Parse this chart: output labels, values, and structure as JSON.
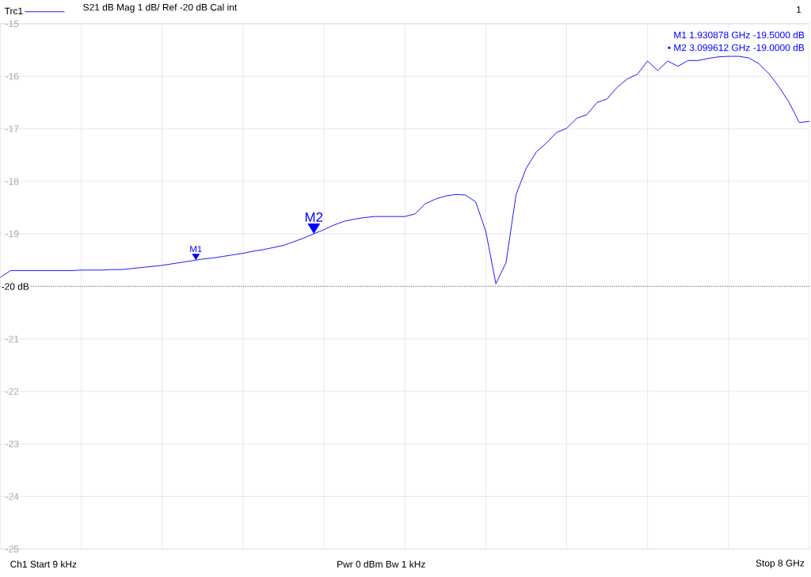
{
  "chart_data": {
    "type": "line",
    "title": "S21 dB Mag 1 dB/ Ref -20 dB Cal int",
    "categories": [
      null,
      null,
      null,
      null,
      null,
      null,
      null,
      null,
      null,
      null,
      null,
      null,
      null,
      null,
      null,
      null,
      null,
      null,
      null,
      null,
      null,
      null,
      null,
      null,
      null,
      null,
      null,
      null,
      null,
      null,
      null,
      null,
      null,
      null,
      null,
      null,
      null,
      null,
      null,
      null,
      null,
      null,
      null,
      null,
      null,
      null,
      null,
      null,
      null,
      null,
      null,
      null,
      null,
      null,
      null,
      null,
      null,
      null,
      null,
      null,
      null,
      null,
      null,
      null,
      null,
      null,
      null,
      null,
      null,
      null,
      null,
      null,
      null,
      null,
      null,
      null,
      null,
      null,
      null,
      null,
      null
    ],
    "series": [
      {
        "name": "Trc1",
        "color": "#0000ff",
        "values": [
          -19.83,
          -19.7,
          -19.7,
          -19.7,
          -19.7,
          -19.7,
          -19.7,
          -19.7,
          -19.69,
          -19.69,
          -19.69,
          -19.68,
          -19.68,
          -19.66,
          -19.64,
          -19.62,
          -19.6,
          -19.57,
          -19.54,
          -19.51,
          -19.48,
          -19.46,
          -19.43,
          -19.4,
          -19.37,
          -19.33,
          -19.3,
          -19.26,
          -19.22,
          -19.15,
          -19.08,
          -19.0,
          -18.92,
          -18.83,
          -18.76,
          -18.72,
          -18.69,
          -18.67,
          -18.67,
          -18.67,
          -18.67,
          -18.62,
          -18.43,
          -18.34,
          -18.28,
          -18.25,
          -18.26,
          -18.39,
          -18.95,
          -19.95,
          -19.55,
          -18.25,
          -17.75,
          -17.44,
          -17.27,
          -17.07,
          -16.99,
          -16.8,
          -16.73,
          -16.5,
          -16.43,
          -16.21,
          -16.05,
          -15.96,
          -15.71,
          -15.89,
          -15.71,
          -15.81,
          -15.7,
          -15.7,
          -15.66,
          -15.63,
          -15.62,
          -15.62,
          -15.65,
          -15.76,
          -15.95,
          -16.2,
          -16.5,
          -16.88,
          -16.86
        ]
      }
    ],
    "ylim": [
      -25,
      -15
    ],
    "yticks": [
      {
        "value": -25,
        "label": "-25"
      },
      {
        "value": -24,
        "label": "-24"
      },
      {
        "value": -23,
        "label": "-23"
      },
      {
        "value": -22,
        "label": "-22"
      },
      {
        "value": -21,
        "label": "-21"
      },
      {
        "value": -20,
        "label": null
      },
      {
        "value": -19,
        "label": "-19"
      },
      {
        "value": -18,
        "label": "-18"
      },
      {
        "value": -17,
        "label": "-17"
      },
      {
        "value": -16,
        "label": "-16"
      },
      {
        "value": -15,
        "label": "-15"
      }
    ],
    "tick_labels": "y",
    "grid": true,
    "legend": "top left",
    "ref_lines": [
      {
        "axis": "y",
        "value": -20,
        "label": "-20 dB",
        "color": "#000000",
        "line_style": "dotted"
      }
    ],
    "annotations": [
      "1",
      "M1 1.930878 GHz -19.5000 dB",
      "• M2 3.099612 GHz -19.0000 dB",
      "Ch1 Start 9 kHz",
      "Pwr 0 dBm Bw 1 kHz",
      "Stop 8 GHz",
      {
        "text": "M1",
        "y": -19.5
      },
      {
        "text": "M2",
        "y": -19.0
      }
    ]
  }
}
